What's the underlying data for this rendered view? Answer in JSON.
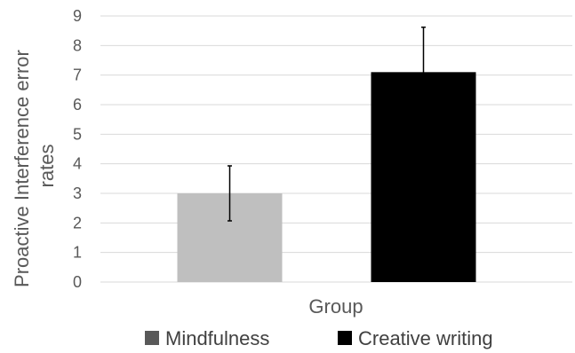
{
  "chart_data": {
    "type": "bar",
    "categories": [
      "Mindfulness",
      "Creative writing"
    ],
    "values": [
      3.0,
      7.1
    ],
    "error": [
      0.93,
      1.52
    ],
    "colors": [
      "#bfbfbf",
      "#000000"
    ],
    "legend_swatch_colors": [
      "#595959",
      "#000000"
    ],
    "xlabel": "Group",
    "ylabel_lines": [
      "Proactive Interference error",
      "rates"
    ],
    "ylim": [
      0,
      9
    ],
    "yticks": [
      "0",
      "1",
      "2",
      "3",
      "4",
      "5",
      "6",
      "7",
      "8",
      "9"
    ],
    "grid": true,
    "legend_position": "bottom",
    "legend": [
      "Mindfulness",
      "Creative writing"
    ]
  }
}
